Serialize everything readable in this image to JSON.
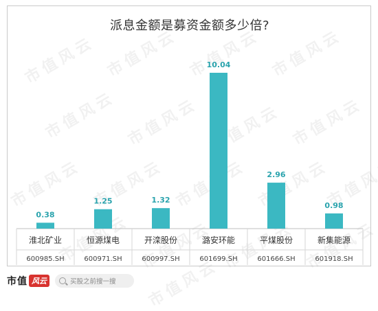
{
  "chart_data": {
    "type": "bar",
    "title": "派息金额是募资金额多少倍?",
    "categories": [
      "淮北矿业",
      "恒源煤电",
      "开滦股份",
      "潞安环能",
      "平煤股份",
      "新集能源"
    ],
    "codes": [
      "600985.SH",
      "600971.SH",
      "600997.SH",
      "601699.SH",
      "601666.SH",
      "601918.SH"
    ],
    "values": [
      0.38,
      1.25,
      1.32,
      10.04,
      2.96,
      0.98
    ],
    "value_labels": [
      "0.38",
      "1.25",
      "1.32",
      "10.04",
      "2.96",
      "0.98"
    ],
    "ylim": [
      0,
      10.04
    ],
    "bar_color": "#3bb8c2",
    "label_color": "#2aa3ad",
    "grid": false,
    "legend": "none"
  },
  "watermark": "市值风云",
  "footer": {
    "logo_text": "市值",
    "logo_badge": "风云",
    "search_placeholder": "买股之前搜一搜"
  }
}
